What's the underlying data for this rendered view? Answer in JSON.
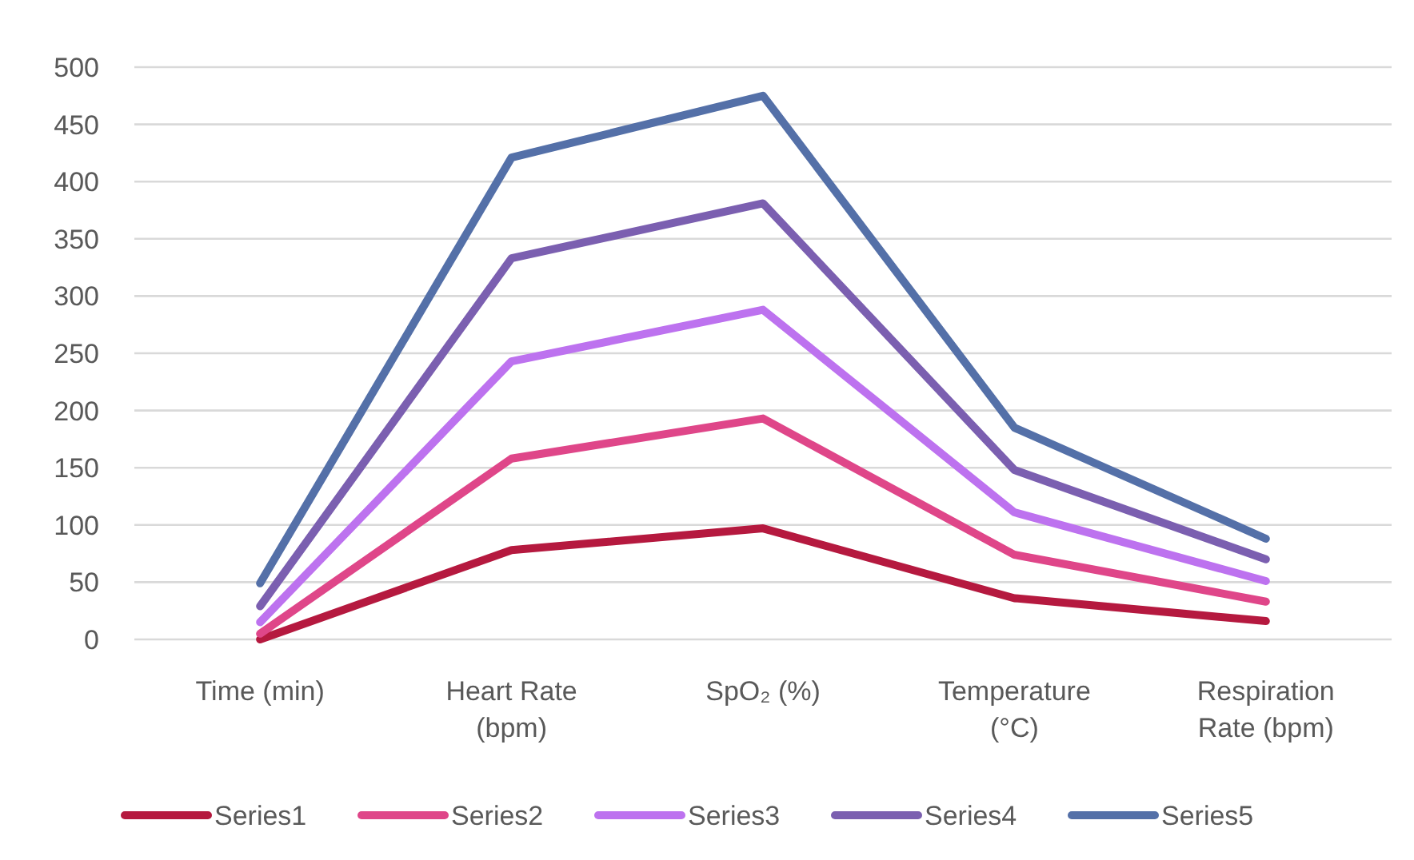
{
  "chart_data": {
    "type": "line",
    "categories": [
      "Time (min)",
      "Heart Rate (bpm)",
      "SpO₂ (%)",
      "Temperature (°C)",
      "Respiration Rate (bpm)"
    ],
    "series": [
      {
        "name": "Series1",
        "color": "#b5193f",
        "values": [
          0,
          78,
          97,
          36,
          16
        ]
      },
      {
        "name": "Series2",
        "color": "#df4689",
        "values": [
          5,
          158,
          193,
          74,
          33
        ]
      },
      {
        "name": "Series3",
        "color": "#bd72ef",
        "values": [
          15,
          243,
          288,
          111,
          51
        ]
      },
      {
        "name": "Series4",
        "color": "#7b5fb0",
        "values": [
          29,
          333,
          381,
          148,
          70
        ]
      },
      {
        "name": "Series5",
        "color": "#5470a8",
        "values": [
          49,
          421,
          475,
          185,
          88
        ]
      }
    ],
    "ylim": [
      0,
      500
    ],
    "yticks": [
      0,
      50,
      100,
      150,
      200,
      250,
      300,
      350,
      400,
      450,
      500
    ],
    "grid": "y",
    "legend": "bottom",
    "marker": "none",
    "line_style": "solid"
  }
}
